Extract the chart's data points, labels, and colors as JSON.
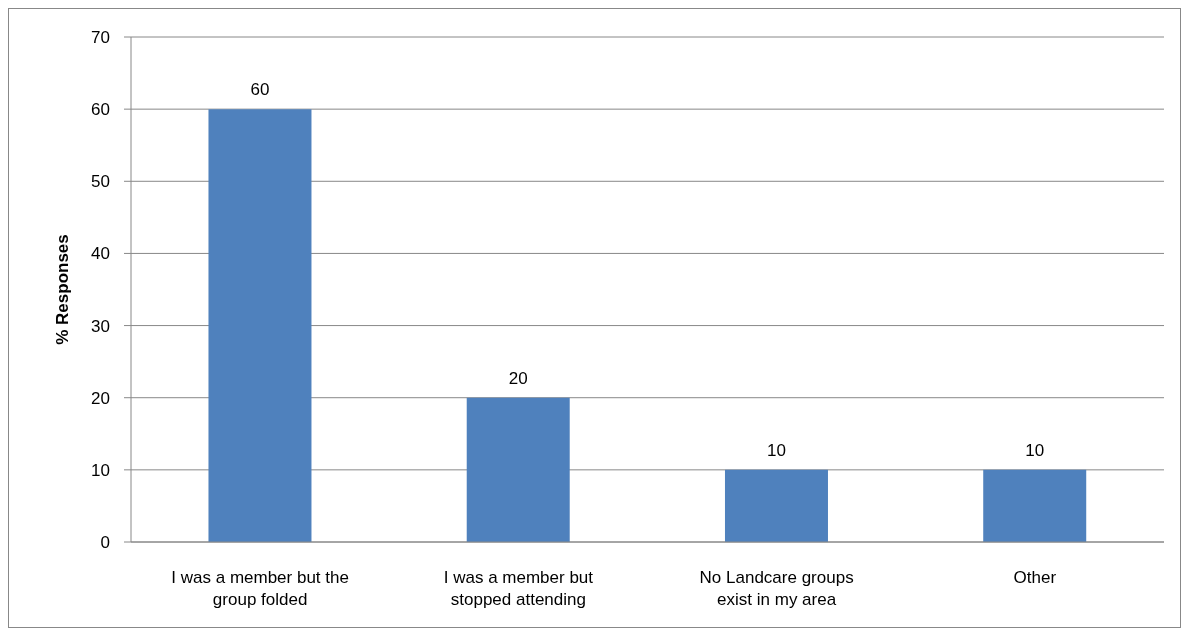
{
  "chart_data": {
    "type": "bar",
    "ylabel": "% Responses",
    "categories": [
      "I was a member but the group folded",
      "I was a member but stopped attending",
      "No Landcare groups exist in my area",
      "Other"
    ],
    "values": [
      60,
      20,
      10,
      10
    ],
    "color": "#4f81bd",
    "ylim": [
      0,
      70
    ],
    "yticks": [
      0,
      10,
      20,
      30,
      40,
      50,
      60,
      70
    ],
    "grid": "y",
    "data_labels": true
  }
}
